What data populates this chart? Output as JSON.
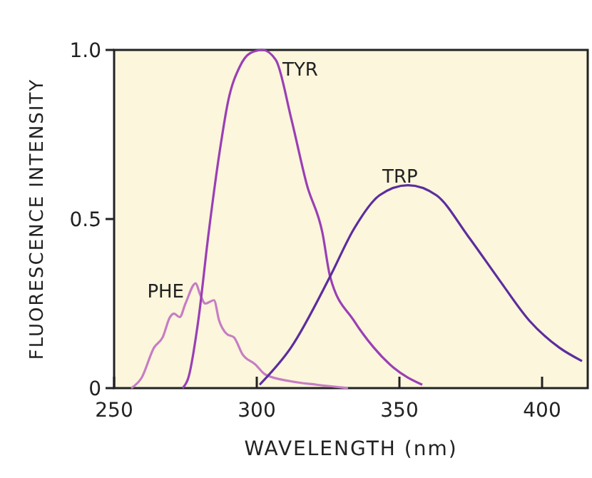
{
  "chart_data": {
    "type": "line",
    "xlabel": "WAVELENGTH (nm)",
    "ylabel": "FLUORESCENCE INTENSITY",
    "xlim": [
      250,
      416
    ],
    "ylim": [
      0,
      1
    ],
    "xticks": [
      250,
      300,
      350,
      400
    ],
    "yticks": [
      0,
      {
        "value": 0.5,
        "label": "0.5"
      },
      {
        "value": 1,
        "label": "1.0"
      }
    ],
    "series": [
      {
        "name": "PHE",
        "color": "#c77dc4",
        "x": [
          256,
          259.6,
          264,
          267,
          269.6,
          271,
          273,
          275,
          278.6,
          280,
          282,
          285,
          286.8,
          289.5,
          292,
          295,
          299.5,
          303,
          312,
          321,
          332
        ],
        "values": [
          0,
          0.03,
          0.12,
          0.15,
          0.21,
          0.22,
          0.21,
          0.25,
          0.31,
          0.28,
          0.25,
          0.26,
          0.2,
          0.16,
          0.15,
          0.1,
          0.07,
          0.04,
          0.02,
          0.01,
          0
        ]
      },
      {
        "name": "TYR",
        "color": "#9b3fb5",
        "x": [
          274,
          276,
          279.5,
          283,
          287,
          290,
          294,
          297.6,
          302,
          306.7,
          312,
          317.6,
          323,
          325.7,
          334,
          341,
          348,
          358
        ],
        "values": [
          0,
          0.03,
          0.2,
          0.45,
          0.7,
          0.85,
          0.95,
          0.99,
          1,
          0.97,
          0.8,
          0.6,
          0.46,
          0.33,
          0.2,
          0.12,
          0.06,
          0.01
        ]
      },
      {
        "name": "TRP",
        "color": "#5c2d9e",
        "x": [
          301,
          312,
          325.7,
          334,
          343,
          353,
          363,
          374,
          385,
          395.5,
          406,
          414
        ],
        "values": [
          0.01,
          0.12,
          0.33,
          0.47,
          0.57,
          0.6,
          0.57,
          0.45,
          0.32,
          0.2,
          0.12,
          0.08
        ]
      }
    ]
  }
}
